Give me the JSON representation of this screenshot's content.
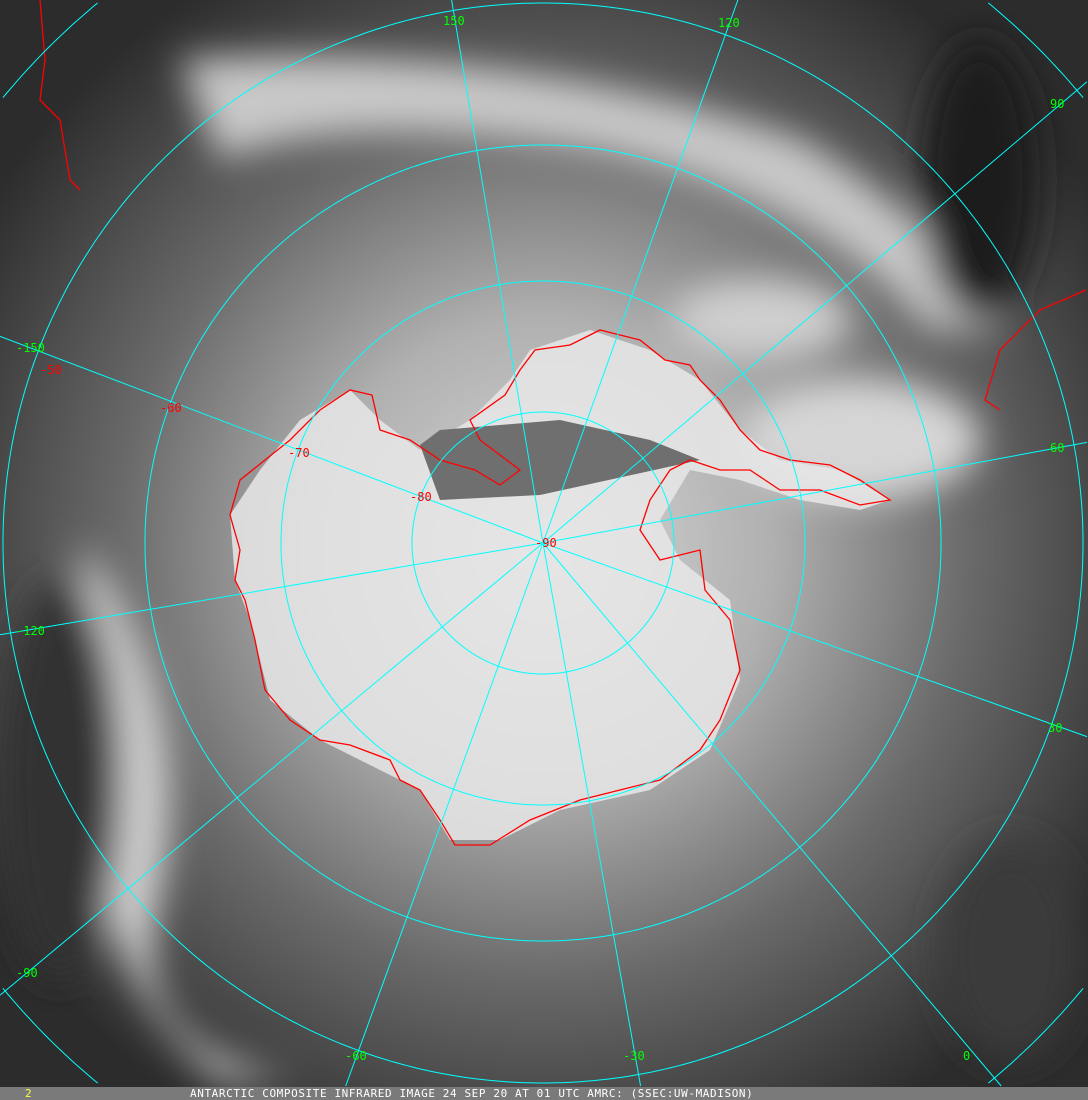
{
  "caption": "ANTARCTIC COMPOSITE INFRARED IMAGE 24 SEP 20 AT 01 UTC AMRC: (SSEC:UW-MADISON)",
  "frame_number": "2",
  "grid_color": "#00ffff",
  "coastline_color": "#ff0000",
  "longitude_label_color": "#00ff00",
  "latitude_label_color": "#ff0000",
  "longitude_labels": [
    "150",
    "120",
    "90",
    "60",
    "30",
    "0",
    "-30",
    "-60",
    "-90",
    "-120",
    "-150"
  ],
  "latitude_labels": [
    "-50",
    "-60",
    "-70",
    "-80",
    "-90"
  ]
}
